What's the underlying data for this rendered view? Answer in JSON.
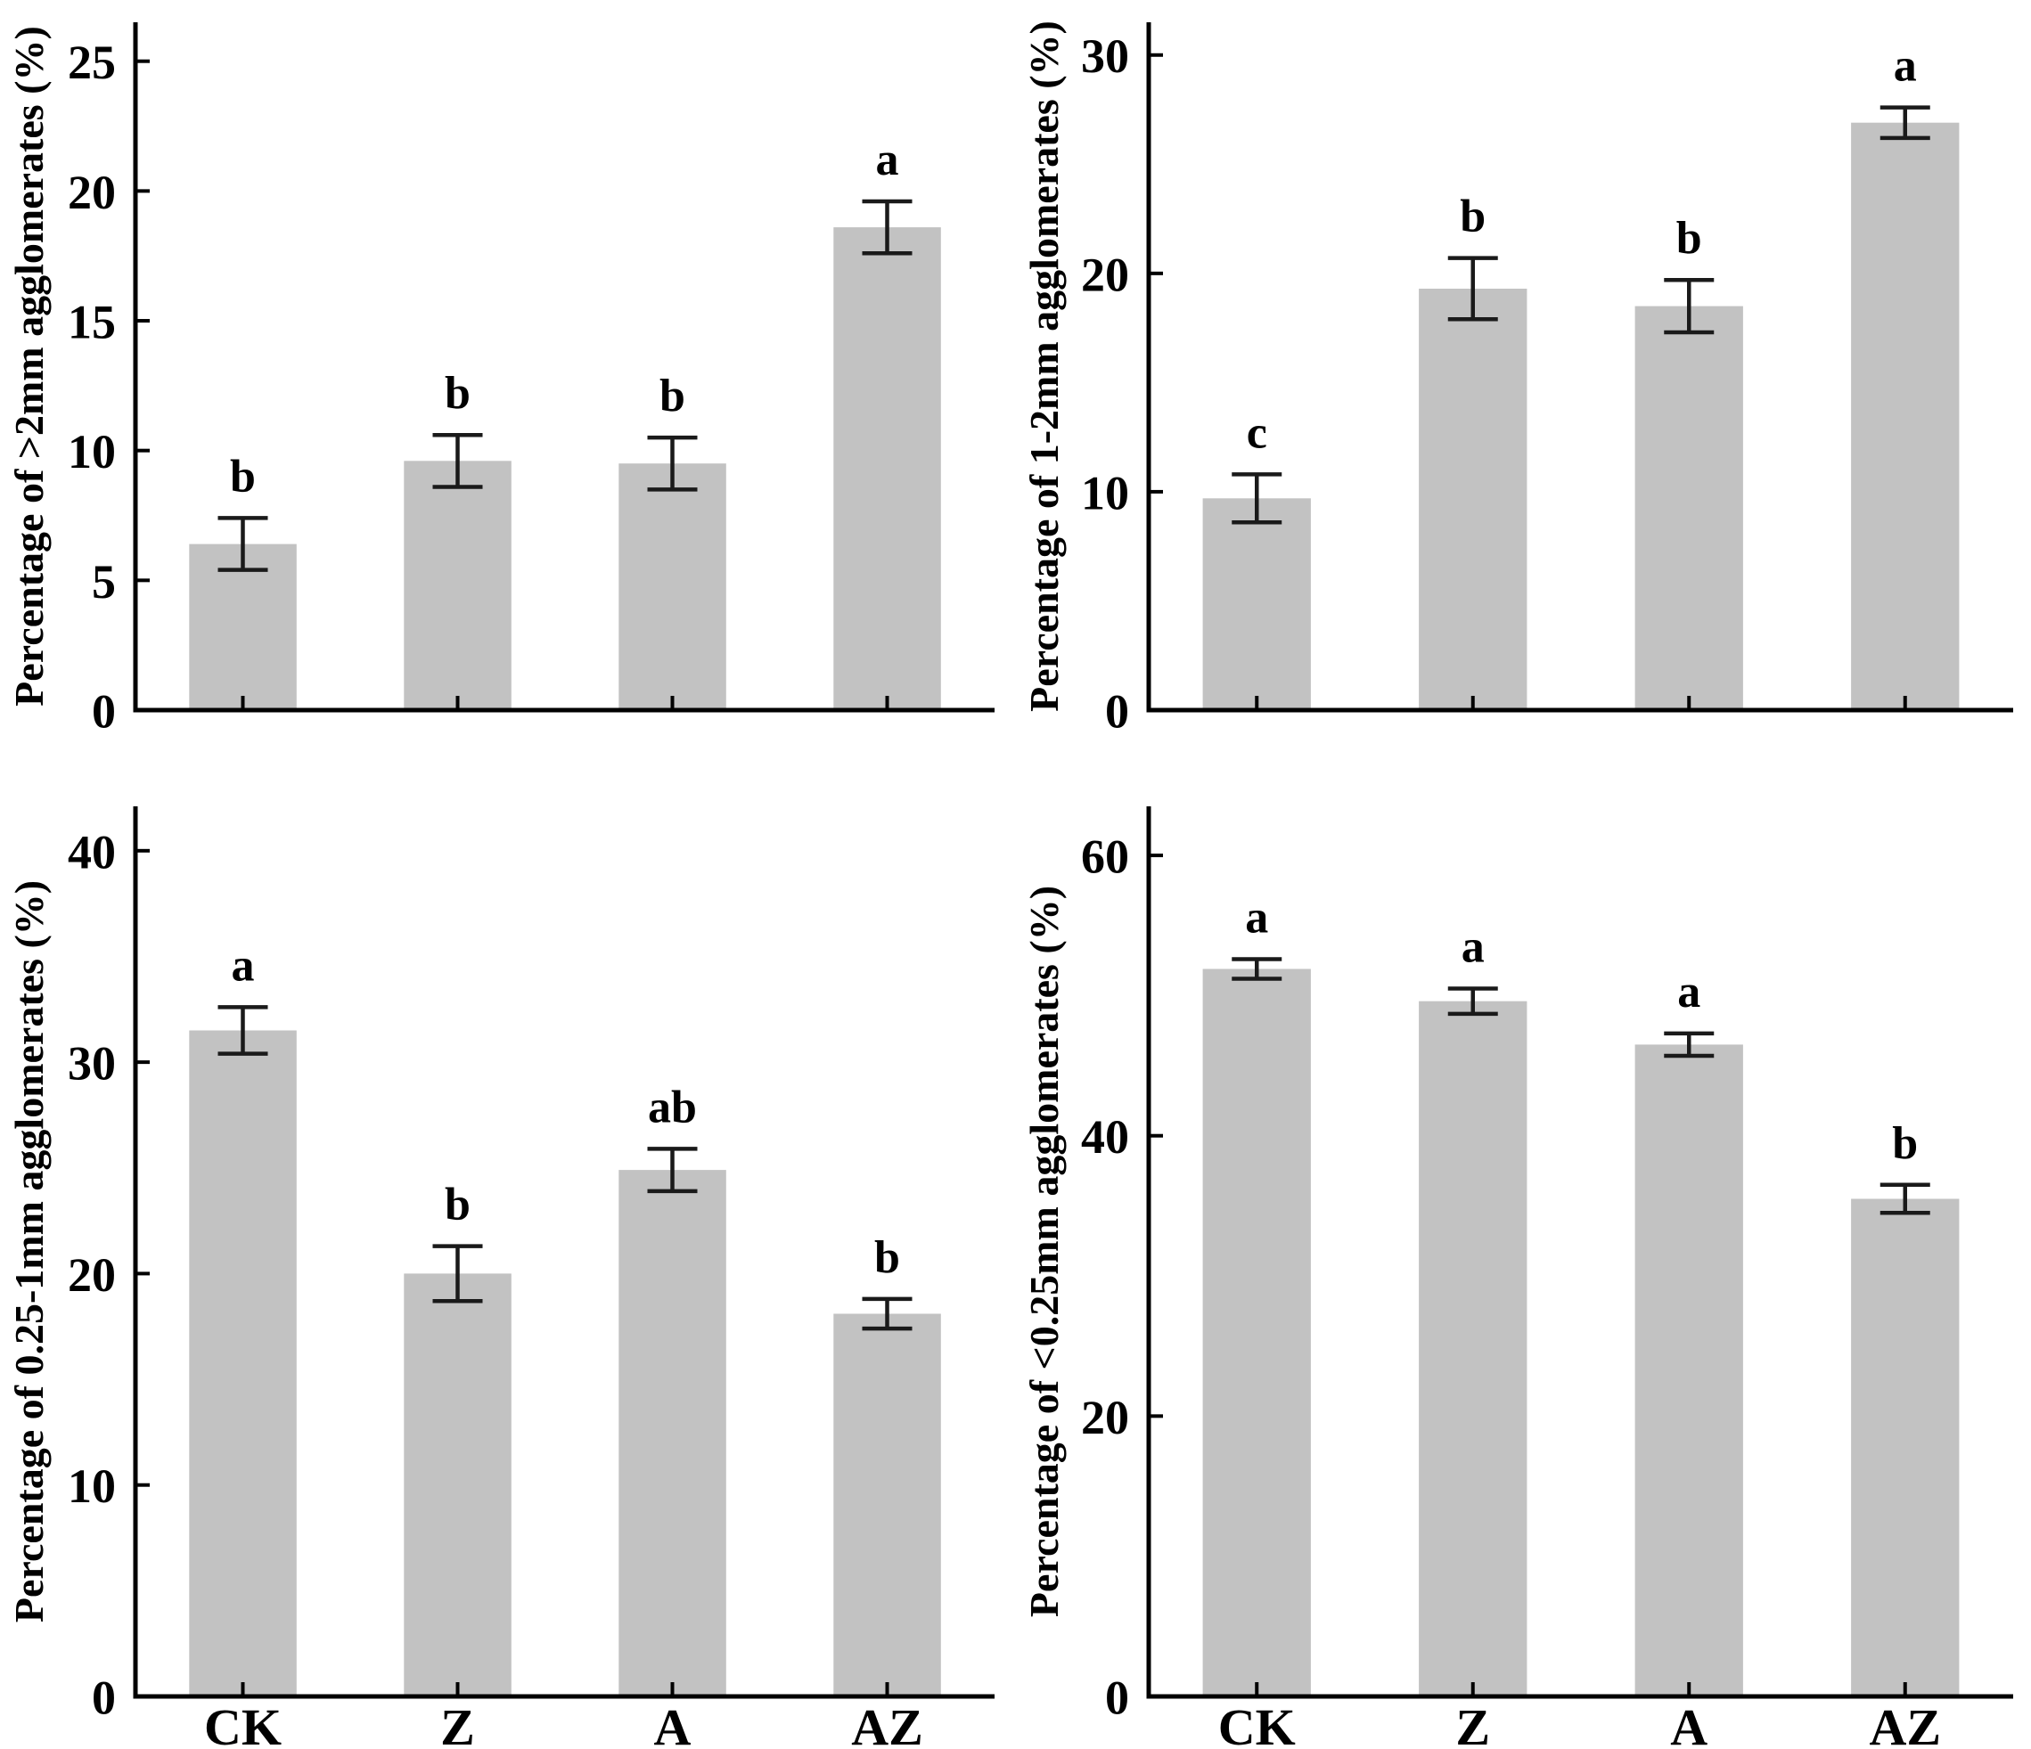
{
  "figure": {
    "background": "#ffffff",
    "panel_count": 4,
    "treatment_groups": [
      "CK",
      "Z",
      "A",
      "AZ"
    ]
  },
  "style": {
    "bar_color": "#c2c2c2",
    "axis_color": "#000000",
    "error_bar_color": "#1a1a1a",
    "text_color": "#000000"
  },
  "chart_data": [
    {
      "id": "panel-gt-2mm",
      "type": "bar",
      "title": "",
      "xlabel": "",
      "ylabel": "Percentage of >2mm agglomerates (%)",
      "categories": [
        "CK",
        "Z",
        "A",
        "AZ"
      ],
      "values": [
        6.4,
        9.6,
        9.5,
        18.6
      ],
      "errors": [
        1.0,
        1.0,
        1.0,
        1.0
      ],
      "sig_labels": [
        "b",
        "b",
        "b",
        "a"
      ],
      "yticks": [
        0,
        5,
        10,
        15,
        20,
        25
      ],
      "ylim": [
        0,
        26.5
      ],
      "show_x_tick_labels": false,
      "grid": false,
      "legend": "none"
    },
    {
      "id": "panel-1-2mm",
      "type": "bar",
      "title": "",
      "xlabel": "",
      "ylabel": "Percentage of 1-2mm agglomerates (%)",
      "categories": [
        "CK",
        "Z",
        "A",
        "AZ"
      ],
      "values": [
        9.7,
        19.3,
        18.5,
        26.9
      ],
      "errors": [
        1.1,
        1.4,
        1.2,
        0.7
      ],
      "sig_labels": [
        "c",
        "b",
        "b",
        "a"
      ],
      "yticks": [
        0,
        10,
        20,
        30
      ],
      "ylim": [
        0,
        31.5
      ],
      "show_x_tick_labels": false,
      "grid": false,
      "legend": "none"
    },
    {
      "id": "panel-025-1mm",
      "type": "bar",
      "title": "",
      "xlabel": "",
      "ylabel": "Percentage of 0.25-1mm agglomerates (%)",
      "categories": [
        "CK",
        "Z",
        "A",
        "AZ"
      ],
      "values": [
        31.5,
        20.0,
        24.9,
        18.1
      ],
      "errors": [
        1.1,
        1.3,
        1.0,
        0.7
      ],
      "sig_labels": [
        "a",
        "b",
        "ab",
        "b"
      ],
      "yticks": [
        0,
        10,
        20,
        30,
        40
      ],
      "ylim": [
        0,
        42.1
      ],
      "show_x_tick_labels": true,
      "grid": false,
      "legend": "none"
    },
    {
      "id": "panel-lt-025mm",
      "type": "bar",
      "title": "",
      "xlabel": "",
      "ylabel": "Percentage of <0.25mm agglomerates (%)",
      "categories": [
        "CK",
        "Z",
        "A",
        "AZ"
      ],
      "values": [
        51.9,
        49.6,
        46.5,
        35.5
      ],
      "errors": [
        0.7,
        0.9,
        0.8,
        1.0
      ],
      "sig_labels": [
        "a",
        "a",
        "a",
        "b"
      ],
      "yticks": [
        0,
        20,
        40,
        60
      ],
      "ylim": [
        0,
        63.5
      ],
      "show_x_tick_labels": true,
      "grid": false,
      "legend": "none"
    }
  ]
}
